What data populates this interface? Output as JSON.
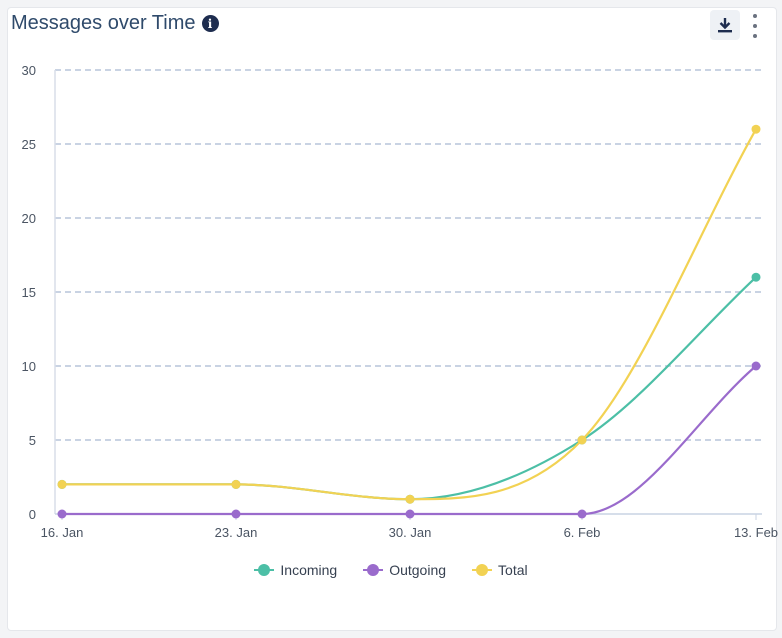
{
  "widget": {
    "title": "Messages over Time"
  },
  "icons": {
    "info": "info-icon",
    "download": "download-icon",
    "more": "more-vertical-icon"
  },
  "chart_data": {
    "type": "line",
    "categories": [
      "16. Jan",
      "23. Jan",
      "30. Jan",
      "6. Feb",
      "13. Feb"
    ],
    "ylim": [
      0,
      30
    ],
    "yticks": [
      0,
      5,
      10,
      15,
      20,
      25,
      30
    ],
    "grid": true,
    "legend_position": "bottom",
    "series": [
      {
        "name": "Incoming",
        "color": "#4cbfa6",
        "values": [
          2,
          2,
          1,
          5,
          16
        ]
      },
      {
        "name": "Outgoing",
        "color": "#9a6bcc",
        "values": [
          0,
          0,
          0,
          0,
          10
        ]
      },
      {
        "name": "Total",
        "color": "#f2d253",
        "values": [
          2,
          2,
          1,
          5,
          26
        ]
      }
    ]
  }
}
